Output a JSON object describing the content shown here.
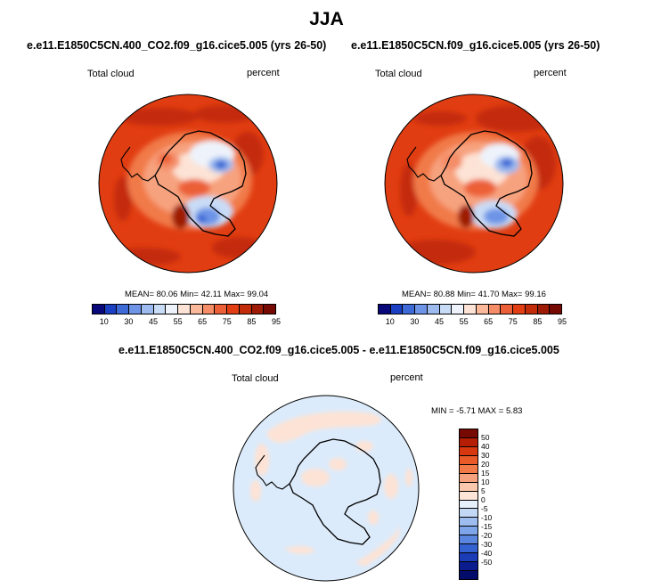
{
  "title": "JJA",
  "panels": [
    {
      "title": "e.e11.E1850C5CN.400_CO2.f09_g16.cice5.005 (yrs 26-50)",
      "left_label": "Total cloud",
      "right_label": "percent",
      "mean_label": "MEAN=",
      "mean": "80.06",
      "min_label": "Min=",
      "min": "42.11",
      "max_label": "Max=",
      "max": "99.04"
    },
    {
      "title": "e.e11.E1850C5CN.f09_g16.cice5.005 (yrs 26-50)",
      "left_label": "Total cloud",
      "right_label": "percent",
      "mean_label": "MEAN=",
      "mean": "80.88",
      "min_label": "Min=",
      "min": "41.70",
      "max_label": "Max=",
      "max": "99.16"
    }
  ],
  "diff": {
    "title": "e.e11.E1850C5CN.400_CO2.f09_g16.cice5.005 - e.e11.E1850C5CN.f09_g16.cice5.005",
    "left_label": "Total cloud",
    "right_label": "percent",
    "min_label": "MIN =",
    "min": "-5.71",
    "max_label": "MAX =",
    "max": "5.83"
  },
  "colorbar_abs": {
    "colors": [
      "#08087a",
      "#1a3fc2",
      "#3d6ad6",
      "#6d94e6",
      "#9dbbef",
      "#c9dcf6",
      "#eef3fb",
      "#fde3d5",
      "#f9b99a",
      "#f48d68",
      "#ec6037",
      "#e23e14",
      "#c22c0a",
      "#9e1c05",
      "#760a02"
    ],
    "ticks": [
      "10",
      "30",
      "45",
      "55",
      "65",
      "75",
      "85",
      "95"
    ]
  },
  "colorbar_diff": {
    "colors": [
      "#760a02",
      "#b51e04",
      "#d83810",
      "#ea5a28",
      "#f17a48",
      "#f7a27e",
      "#fbc8ae",
      "#fde6d8",
      "#e6f0fb",
      "#c3d8f5",
      "#9dbcef",
      "#7ea4ea",
      "#5a86e0",
      "#3461d2",
      "#1a3cb6",
      "#0a1c8e",
      "#030c6a"
    ],
    "ticks": [
      "50",
      "40",
      "30",
      "20",
      "15",
      "10",
      "5",
      "0",
      "-5",
      "-10",
      "-15",
      "-20",
      "-30",
      "-40",
      "-50"
    ]
  }
}
